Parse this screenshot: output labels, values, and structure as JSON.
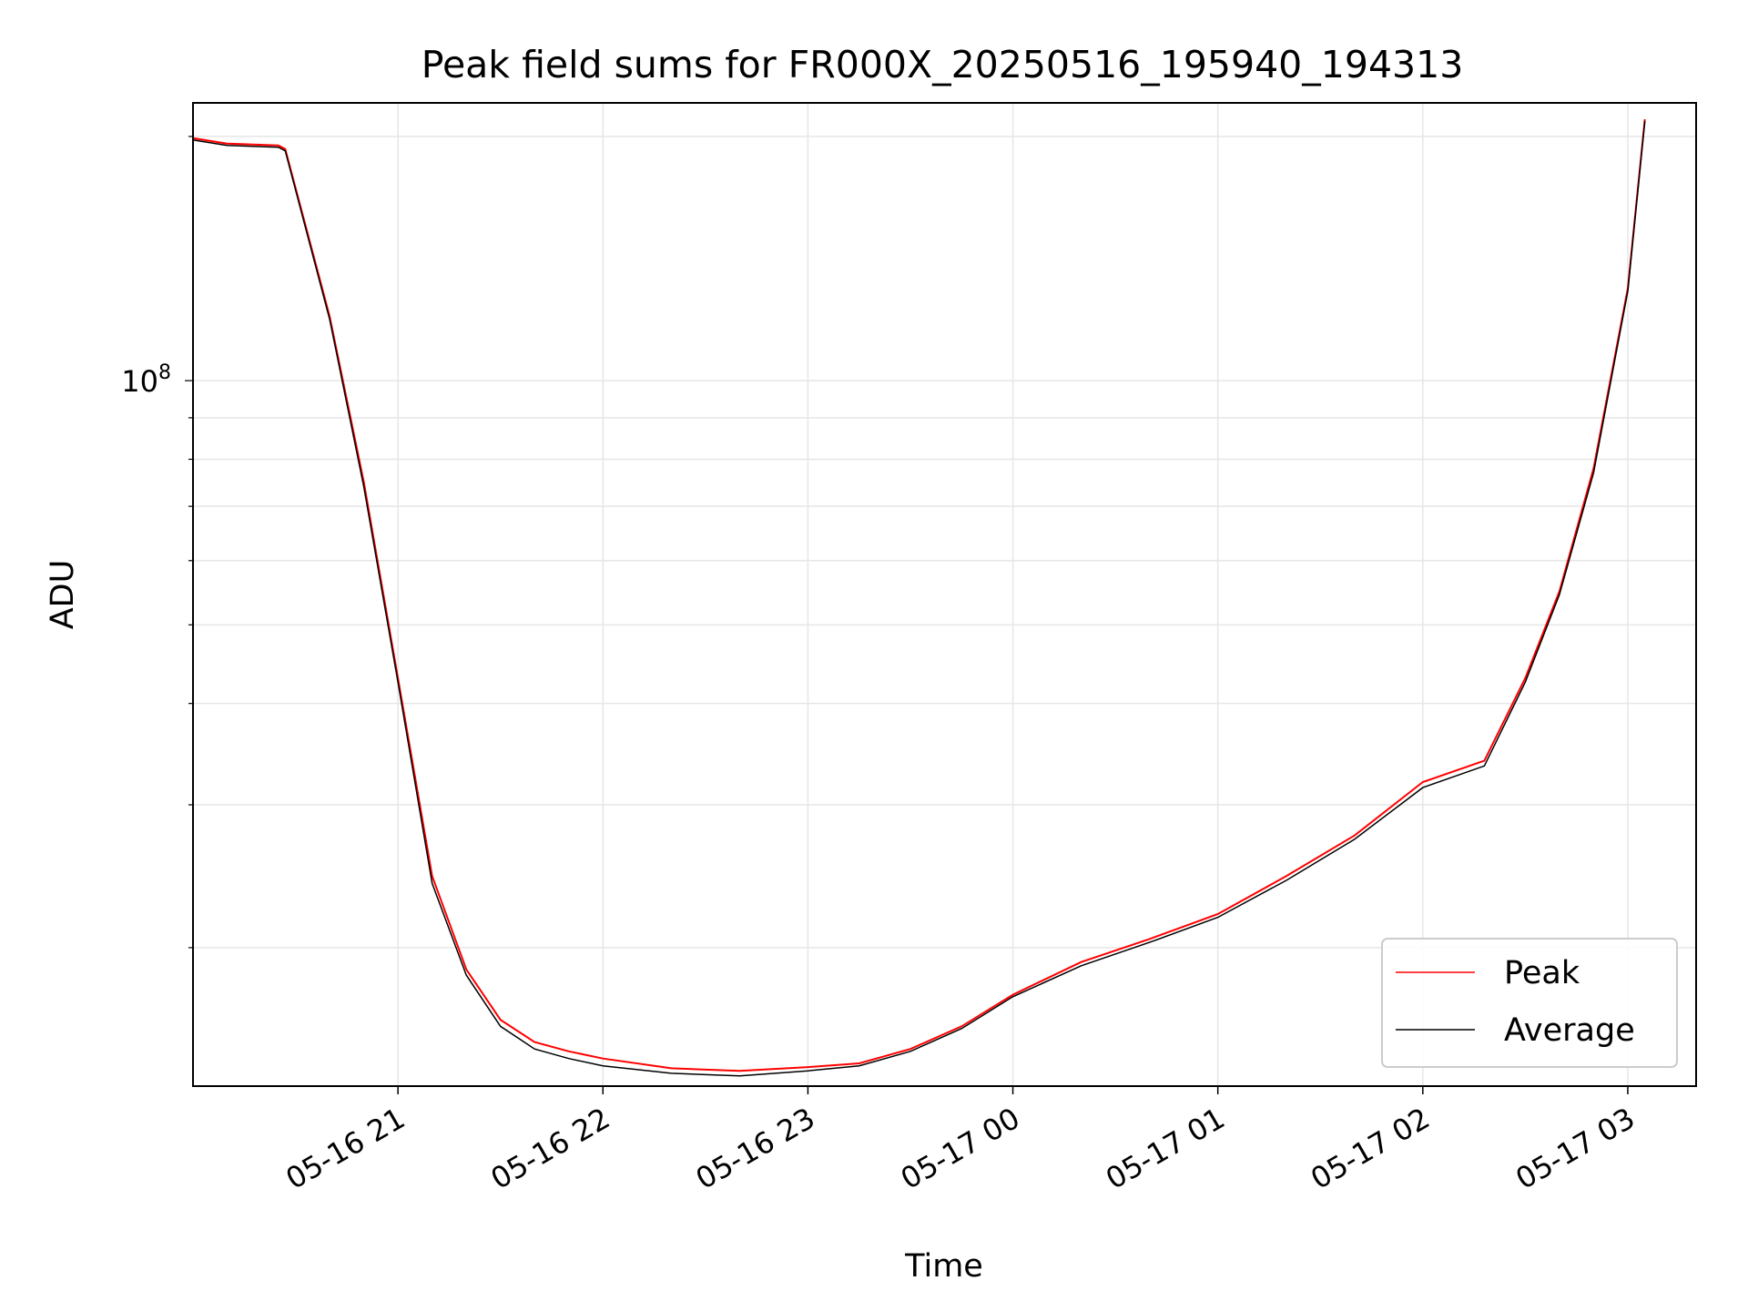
{
  "chart_data": {
    "type": "line",
    "title": "Peak field sums for FR000X_20250516_195940_194313",
    "xlabel": "Time",
    "ylabel": "ADU",
    "y_scale": "log",
    "ylim": [
      13500000,
      220000000
    ],
    "xlim": [
      "2025-05-16 20:00",
      "2025-05-17 03:20"
    ],
    "x_ticks": [
      "05-16 21",
      "05-16 22",
      "05-16 23",
      "05-17 00",
      "05-17 01",
      "05-17 02",
      "05-17 03"
    ],
    "y_ticks": [
      {
        "label_base": "10",
        "label_exp": "8",
        "value": 100000000
      }
    ],
    "grid": true,
    "legend": "lower-right",
    "series": [
      {
        "name": "Peak",
        "color": "#ff0000",
        "x": [
          "2025-05-16 20:00",
          "2025-05-16 20:10",
          "2025-05-16 20:25",
          "2025-05-16 20:27",
          "2025-05-16 20:40",
          "2025-05-16 20:50",
          "2025-05-16 21:00",
          "2025-05-16 21:10",
          "2025-05-16 21:20",
          "2025-05-16 21:30",
          "2025-05-16 21:40",
          "2025-05-16 21:50",
          "2025-05-16 22:00",
          "2025-05-16 22:20",
          "2025-05-16 22:40",
          "2025-05-16 23:00",
          "2025-05-16 23:15",
          "2025-05-16 23:30",
          "2025-05-16 23:45",
          "2025-05-17 00:00",
          "2025-05-17 00:20",
          "2025-05-17 00:40",
          "2025-05-17 01:00",
          "2025-05-17 01:20",
          "2025-05-17 01:40",
          "2025-05-17 02:00",
          "2025-05-17 02:18",
          "2025-05-17 02:30",
          "2025-05-17 02:40",
          "2025-05-17 02:50",
          "2025-05-17 03:00",
          "2025-05-17 03:05"
        ],
        "y": [
          199000000,
          196000000,
          195000000,
          193000000,
          120000000,
          75000000,
          43000000,
          24500000,
          18800000,
          16300000,
          15300000,
          14900000,
          14600000,
          14200000,
          14100000,
          14250000,
          14400000,
          15000000,
          16000000,
          17500000,
          19200000,
          20500000,
          22000000,
          24500000,
          27500000,
          32000000,
          34000000,
          43000000,
          55000000,
          78000000,
          130000000,
          210000000
        ]
      },
      {
        "name": "Average",
        "color": "#000000",
        "x": [
          "2025-05-16 20:00",
          "2025-05-16 20:10",
          "2025-05-16 20:25",
          "2025-05-16 20:27",
          "2025-05-16 20:40",
          "2025-05-16 20:50",
          "2025-05-16 21:00",
          "2025-05-16 21:10",
          "2025-05-16 21:20",
          "2025-05-16 21:30",
          "2025-05-16 21:40",
          "2025-05-16 21:50",
          "2025-05-16 22:00",
          "2025-05-16 22:20",
          "2025-05-16 22:40",
          "2025-05-16 23:00",
          "2025-05-16 23:15",
          "2025-05-16 23:30",
          "2025-05-16 23:45",
          "2025-05-17 00:00",
          "2025-05-17 00:20",
          "2025-05-17 00:40",
          "2025-05-17 01:00",
          "2025-05-17 01:20",
          "2025-05-17 01:40",
          "2025-05-17 02:00",
          "2025-05-17 02:18",
          "2025-05-17 02:30",
          "2025-05-17 02:40",
          "2025-05-17 02:50",
          "2025-05-17 03:00",
          "2025-05-17 03:05"
        ],
        "y": [
          198000000,
          195000000,
          194000000,
          192000000,
          119000000,
          74000000,
          42500000,
          24000000,
          18500000,
          16000000,
          15000000,
          14600000,
          14300000,
          14000000,
          13900000,
          14100000,
          14300000,
          14900000,
          15900000,
          17400000,
          19000000,
          20300000,
          21800000,
          24200000,
          27200000,
          31500000,
          33500000,
          42500000,
          54500000,
          77000000,
          129000000,
          209000000
        ]
      }
    ]
  }
}
